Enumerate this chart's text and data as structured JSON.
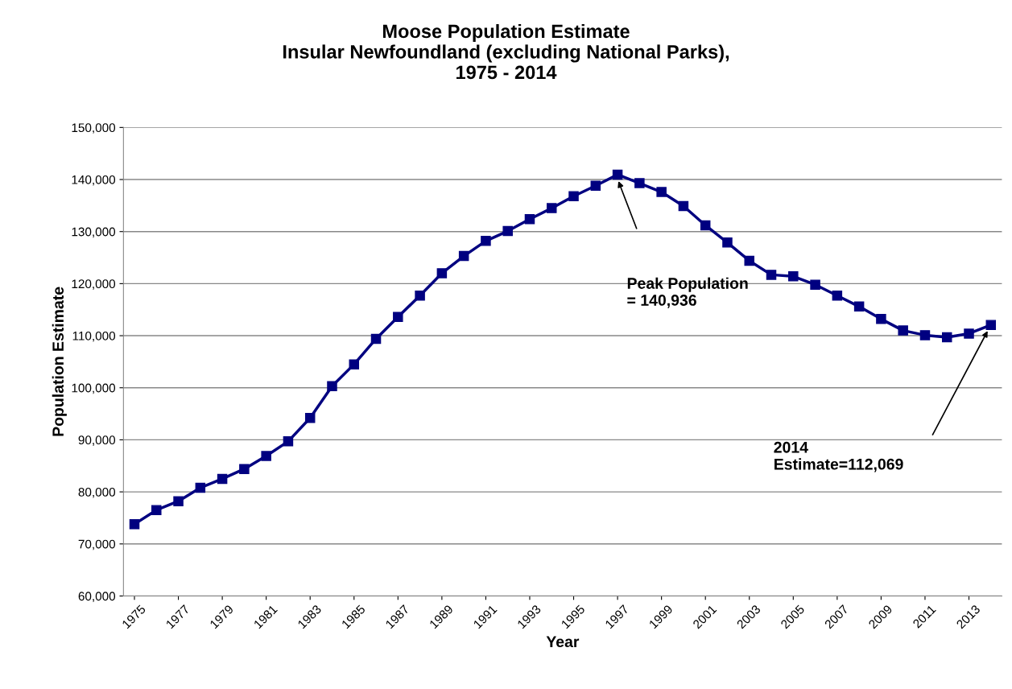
{
  "chart_data": {
    "type": "line",
    "title": "Moose Population Estimate\nInsular Newfoundland (excluding National Parks),\n1975 - 2014",
    "xlabel": "Year",
    "ylabel": "Population Estimate",
    "x": [
      1975,
      1976,
      1977,
      1978,
      1979,
      1980,
      1981,
      1982,
      1983,
      1984,
      1985,
      1986,
      1987,
      1988,
      1989,
      1990,
      1991,
      1992,
      1993,
      1994,
      1995,
      1996,
      1997,
      1998,
      1999,
      2000,
      2001,
      2002,
      2003,
      2004,
      2005,
      2006,
      2007,
      2008,
      2009,
      2010,
      2011,
      2012,
      2013,
      2014
    ],
    "series": [
      {
        "color": "#000080",
        "values": [
          73800,
          76500,
          78200,
          80800,
          82500,
          84400,
          86900,
          89700,
          94200,
          100300,
          104500,
          109400,
          113600,
          117700,
          122000,
          125300,
          128200,
          130100,
          132400,
          134500,
          136800,
          138800,
          140936,
          139300,
          137600,
          134900,
          131200,
          127900,
          124400,
          121700,
          121400,
          119800,
          117700,
          115600,
          113200,
          111000,
          110100,
          109700,
          110400,
          112069
        ]
      }
    ],
    "xlim": [
      1974.5,
      2014.5
    ],
    "xticks": [
      1975,
      1977,
      1979,
      1981,
      1983,
      1985,
      1987,
      1989,
      1991,
      1993,
      1995,
      1997,
      1999,
      2001,
      2003,
      2005,
      2007,
      2009,
      2011,
      2013
    ],
    "ylim": [
      60000,
      150000
    ],
    "yticks": [
      {
        "value": 60000,
        "label": "60,000"
      },
      {
        "value": 70000,
        "label": "70,000"
      },
      {
        "value": 80000,
        "label": "80,000"
      },
      {
        "value": 90000,
        "label": "90,000"
      },
      {
        "value": 100000,
        "label": "100,000"
      },
      {
        "value": 110000,
        "label": "110,000"
      },
      {
        "value": 120000,
        "label": "120,000"
      },
      {
        "value": 130000,
        "label": "130,000"
      },
      {
        "value": 140000,
        "label": "140,000"
      },
      {
        "value": 150000,
        "label": "150,000"
      }
    ],
    "grid": "y",
    "marker": "square",
    "line_style": "solid",
    "legend": false,
    "annotations": [
      "Peak Population\n= 140,936",
      "2014\nEstimate=112,069"
    ]
  }
}
